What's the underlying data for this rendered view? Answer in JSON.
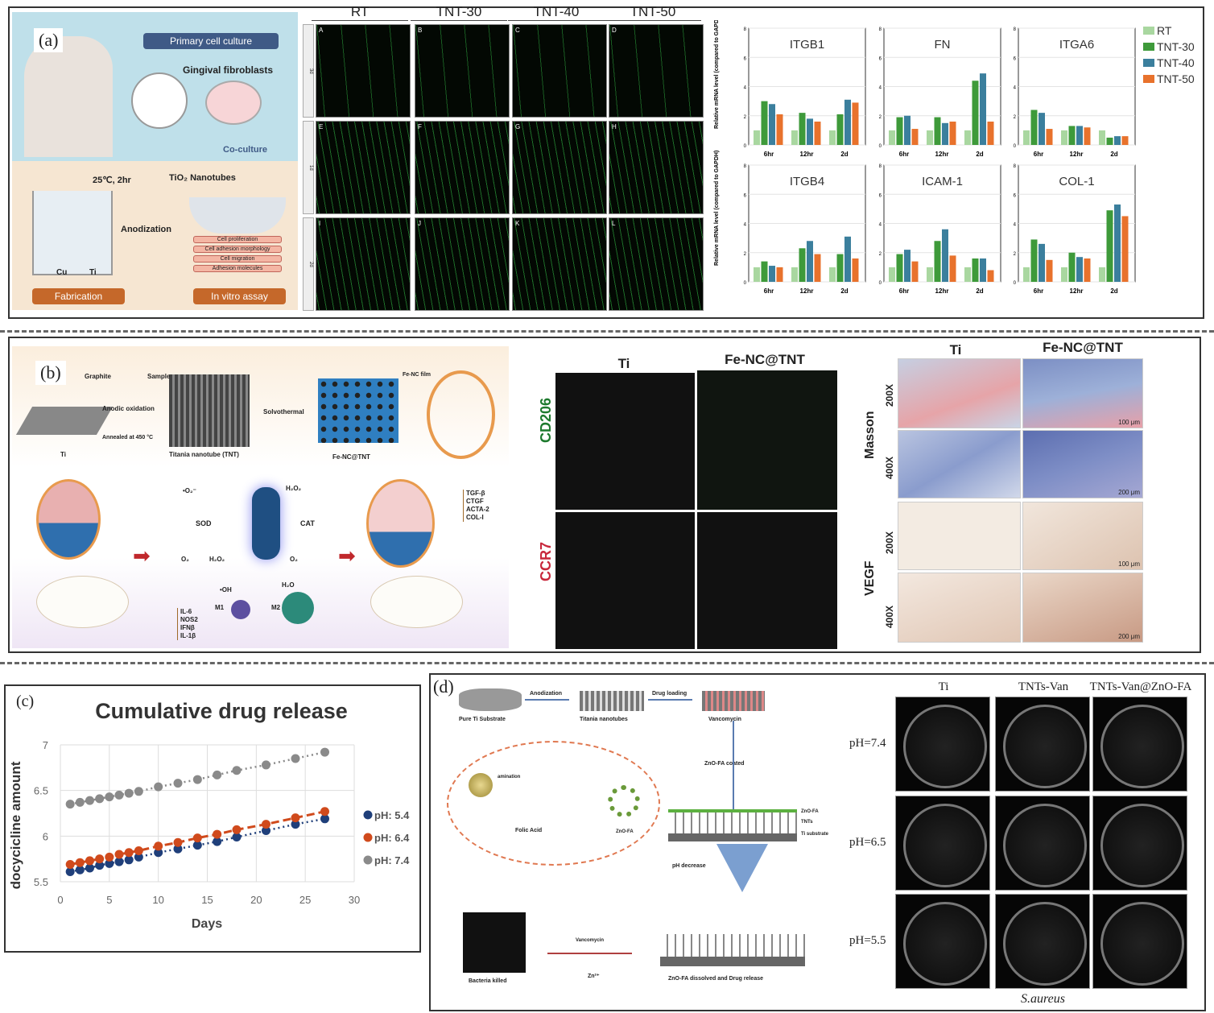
{
  "panel_labels": {
    "a": "(a)",
    "b": "(b)",
    "c": "(c)",
    "d": "(d)"
  },
  "panel_a": {
    "schematic": {
      "primary": "Primary cell culture",
      "fibroblasts": "Gingival fibroblasts",
      "coculture": "Co-culture",
      "condition": "25℃, 2hr",
      "nanotubes": "TiO₂ Nanotubes",
      "anodization": "Anodization",
      "cu": "Cu",
      "ti": "Ti",
      "fabrication": "Fabrication",
      "assay": "In vitro assay",
      "assays": [
        "Cell proliferation",
        "Cell adhesion morphology",
        "Cell migration",
        "Adhesion molecules"
      ]
    },
    "micro": {
      "columns": [
        "RT",
        "TNT-30",
        "TNT-40",
        "TNT-50"
      ],
      "rows": [
        "3d",
        "1d",
        "2d"
      ],
      "letters": [
        "A",
        "B",
        "C",
        "D",
        "E",
        "F",
        "G",
        "H",
        "I",
        "J",
        "K",
        "L"
      ]
    }
  },
  "panel_b": {
    "schematic": {
      "graphite": "Graphite",
      "sample": "Sample",
      "anodic": "Anodic oxidation",
      "annealed": "Annealed at 450 °C",
      "solvothermal": "Solvothermal",
      "fenc_film": "Fe-NC film",
      "ti": "Ti",
      "tnt": "Titania nanotube (TNT)",
      "fenctnt": "Fe-NC@TNT",
      "o2r": "•O₂⁻",
      "sod": "SOD",
      "h2o2": "H₂O₂",
      "cat": "CAT",
      "o2a": "O₂",
      "h2o2b": "H₂O₂",
      "o2b": "O₂",
      "oh": "•OH",
      "h2o": "H₂O",
      "m1": "M1",
      "m2": "M2",
      "down": [
        "IL-6",
        "NOS2",
        "IFNβ",
        "IL-1β"
      ],
      "up": [
        "TGF-β",
        "CTGF",
        "ACTA-2",
        "COL-I"
      ]
    },
    "if": {
      "columns": [
        "Ti",
        "Fe-NC@TNT"
      ],
      "rows": [
        "CD206",
        "CCR7"
      ],
      "row_colors": [
        "#1e7a2e",
        "#c8283c"
      ]
    },
    "histo": {
      "columns": [
        "Ti",
        "Fe-NC@TNT"
      ],
      "groups": [
        "Masson",
        "VEGF"
      ],
      "mags": [
        "200X",
        "400X",
        "200X",
        "400X"
      ],
      "scales": [
        "100 μm",
        "200 μm",
        "100 μm",
        "200 μm"
      ]
    }
  },
  "panel_d": {
    "schematic": {
      "anodization": "Anodization",
      "drug_loading": "Drug loading",
      "pure_ti": "Pure Ti Substrate",
      "titania": "Titania nanotubes",
      "vancomycin": "Vancomycin",
      "zno_coated": "ZnO-FA coated",
      "amination": "amination",
      "folic": "Folic Acid",
      "znofa": "ZnO-FA",
      "layer_labels": [
        "ZnO-FA",
        "TNTs",
        "Ti substrate"
      ],
      "ph_decrease": "pH decrease",
      "dissolved": "ZnO-FA dissolved and Drug release",
      "bacteria": "Bacteria killed",
      "vanco2": "Vancomycin",
      "zn": "Zn²⁺"
    },
    "plates": {
      "columns": [
        "Ti",
        "TNTs-Van",
        "TNTs-Van@ZnO-FA"
      ],
      "rows": [
        "pH=7.4",
        "pH=6.5",
        "pH=5.5"
      ],
      "caption": "S.aureus"
    }
  },
  "chart_data": [
    {
      "type": "bar",
      "ylabel": "Relative mRNA level (compared to GAPDH)",
      "ylim": [
        0,
        8
      ],
      "yticks": [
        0,
        2,
        4,
        6,
        8
      ],
      "categories": [
        "6hr",
        "12hr",
        "2d"
      ],
      "legend": [
        {
          "name": "RT",
          "color": "#a9d7a0"
        },
        {
          "name": "TNT-30",
          "color": "#3e9a3a"
        },
        {
          "name": "TNT-40",
          "color": "#3b7f9d"
        },
        {
          "name": "TNT-50",
          "color": "#e8722c"
        }
      ],
      "subplots": [
        {
          "title": "ITGB1",
          "values": [
            [
              1,
              3.0,
              2.8,
              2.1
            ],
            [
              1,
              2.2,
              1.8,
              1.6
            ],
            [
              1,
              2.1,
              3.1,
              2.9
            ]
          ]
        },
        {
          "title": "FN",
          "values": [
            [
              1,
              1.9,
              2.0,
              1.1
            ],
            [
              1,
              1.9,
              1.5,
              1.6
            ],
            [
              1,
              4.4,
              4.9,
              1.6
            ]
          ]
        },
        {
          "title": "ITGA6",
          "values": [
            [
              1,
              2.4,
              2.2,
              1.1
            ],
            [
              1,
              1.3,
              1.3,
              1.2
            ],
            [
              1,
              0.5,
              0.6,
              0.6
            ]
          ]
        },
        {
          "title": "ITGB4",
          "values": [
            [
              1,
              1.4,
              1.1,
              1.0
            ],
            [
              1,
              2.3,
              2.8,
              1.9
            ],
            [
              1,
              1.9,
              3.1,
              1.6
            ]
          ]
        },
        {
          "title": "ICAM-1",
          "values": [
            [
              1,
              1.9,
              2.2,
              1.4
            ],
            [
              1,
              2.8,
              3.6,
              1.8
            ],
            [
              1,
              1.6,
              1.6,
              0.8
            ]
          ]
        },
        {
          "title": "COL-1",
          "values": [
            [
              1,
              2.9,
              2.6,
              1.5
            ],
            [
              1,
              2.0,
              1.7,
              1.6
            ],
            [
              1,
              4.9,
              5.3,
              4.5
            ]
          ]
        }
      ]
    },
    {
      "type": "line",
      "title": "Cumulative drug release",
      "xlabel": "Days",
      "ylabel": "docycicline amount",
      "xlim": [
        0,
        30
      ],
      "ylim": [
        5.5,
        7
      ],
      "xticks": [
        0,
        5,
        10,
        15,
        20,
        25,
        30
      ],
      "yticks": [
        5.5,
        6,
        6.5,
        7
      ],
      "grid": true,
      "legend_placement": "right",
      "x": [
        1,
        2,
        3,
        4,
        5,
        6,
        7,
        8,
        10,
        12,
        14,
        16,
        18,
        21,
        24,
        27
      ],
      "series": [
        {
          "name": "pH: 5.4",
          "color": "#1f3f7a",
          "style": "dotted",
          "values": [
            5.61,
            5.63,
            5.65,
            5.68,
            5.7,
            5.72,
            5.74,
            5.77,
            5.82,
            5.86,
            5.9,
            5.94,
            5.99,
            6.06,
            6.13,
            6.19
          ]
        },
        {
          "name": "pH: 6.4",
          "color": "#d04a1c",
          "style": "dashed",
          "values": [
            5.69,
            5.71,
            5.73,
            5.75,
            5.77,
            5.8,
            5.82,
            5.84,
            5.89,
            5.93,
            5.98,
            6.02,
            6.07,
            6.13,
            6.2,
            6.27
          ]
        },
        {
          "name": "pH: 7.4",
          "color": "#8a8a8a",
          "style": "dotted",
          "values": [
            6.35,
            6.37,
            6.39,
            6.41,
            6.43,
            6.45,
            6.47,
            6.49,
            6.54,
            6.58,
            6.62,
            6.67,
            6.72,
            6.78,
            6.85,
            6.92
          ]
        }
      ]
    }
  ]
}
